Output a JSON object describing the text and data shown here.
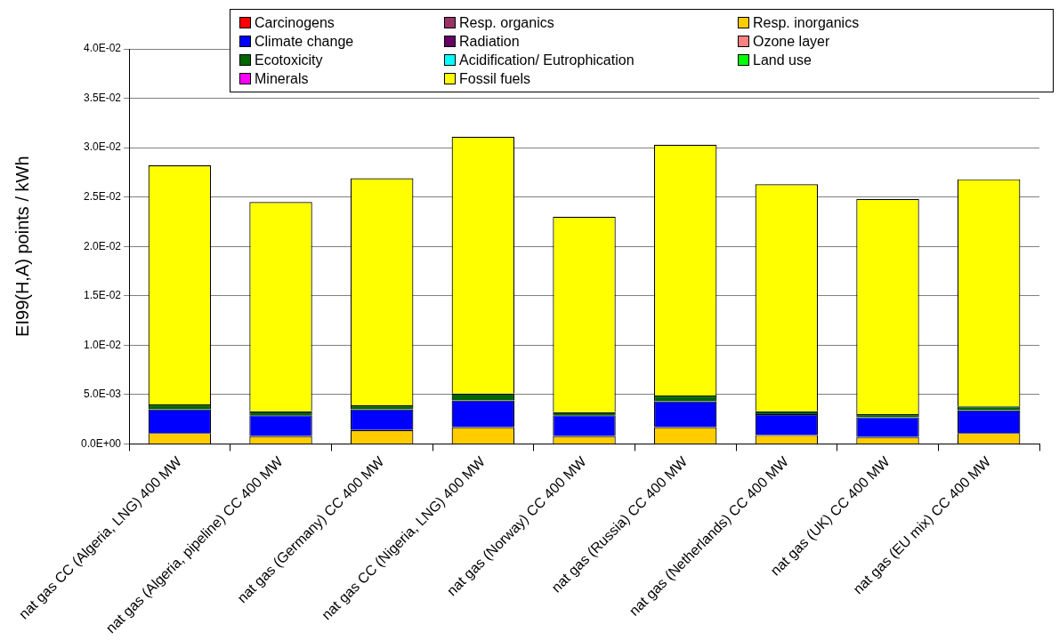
{
  "chart_data": {
    "type": "bar",
    "stacked": true,
    "ylabel": "EI99(H,A) points / kWh",
    "categories": [
      "nat gas CC (Algeria, LNG) 400 MW",
      "nat gas (Algeria, pipeline) CC 400 MW",
      "nat gas (Germany) CC 400 MW",
      "nat gas CC (Nigeria, LNG) 400 MW",
      "nat gas (Norway) CC 400 MW",
      "nat gas (Russia) CC 400 MW",
      "nat gas (Netherlands) CC 400 MW",
      "nat gas (UK) CC 400 MW",
      "nat gas (EU mix) CC 400 MW"
    ],
    "series": [
      {
        "name": "Carcinogens",
        "color": "#ff0000",
        "values": [
          0,
          0,
          0,
          0,
          0,
          0,
          0,
          0,
          0
        ]
      },
      {
        "name": "Resp. organics",
        "color": "#993366",
        "values": [
          0,
          0,
          0,
          0,
          0,
          0,
          0,
          0,
          0
        ]
      },
      {
        "name": "Resp. inorganics",
        "color": "#ffcc00",
        "values": [
          0.0011,
          0.0008,
          0.0014,
          0.0017,
          0.0008,
          0.0017,
          0.0009,
          0.0007,
          0.0011
        ]
      },
      {
        "name": "Climate change",
        "color": "#0000ff",
        "values": [
          0.0024,
          0.0021,
          0.0021,
          0.0027,
          0.0021,
          0.0026,
          0.0021,
          0.002,
          0.0023
        ]
      },
      {
        "name": "Radiation",
        "color": "#660066",
        "values": [
          0,
          0,
          0,
          0,
          0,
          0,
          0,
          0,
          0
        ]
      },
      {
        "name": "Ozone layer",
        "color": "#ff8080",
        "values": [
          0,
          0,
          0,
          0,
          0,
          0,
          0,
          0,
          0
        ]
      },
      {
        "name": "Ecotoxicity",
        "color": "#006600",
        "values": [
          0.0005,
          0.0004,
          0.0004,
          0.0007,
          0.0003,
          0.0006,
          0.0003,
          0.0003,
          0.0004
        ]
      },
      {
        "name": "Acidification/ Eutrophication",
        "color": "#00ffff",
        "values": [
          0,
          0,
          0,
          0,
          0,
          0,
          0,
          0,
          0
        ]
      },
      {
        "name": "Land use",
        "color": "#00ff00",
        "values": [
          0,
          0,
          0,
          0,
          0,
          0,
          0,
          0,
          0
        ]
      },
      {
        "name": "Minerals",
        "color": "#ff00ff",
        "values": [
          0,
          0,
          0,
          0,
          0,
          0,
          0,
          0,
          0
        ]
      },
      {
        "name": "Fossil fuels",
        "color": "#ffff00",
        "values": [
          0.0242,
          0.0212,
          0.023,
          0.026,
          0.0198,
          0.0254,
          0.023,
          0.0218,
          0.023
        ]
      }
    ],
    "ylim": [
      0,
      0.04
    ],
    "yticks": [
      {
        "value": 0,
        "label": "0.0E+00"
      },
      {
        "value": 0.005,
        "label": "5.0E-03"
      },
      {
        "value": 0.01,
        "label": "1.0E-02"
      },
      {
        "value": 0.015,
        "label": "1.5E-02"
      },
      {
        "value": 0.02,
        "label": "2.0E-02"
      },
      {
        "value": 0.025,
        "label": "2.5E-02"
      },
      {
        "value": 0.03,
        "label": "3.0E-02"
      },
      {
        "value": 0.035,
        "label": "3.5E-02"
      },
      {
        "value": 0.04,
        "label": "4.0E-02"
      }
    ],
    "grid": "y",
    "legend": "top"
  }
}
